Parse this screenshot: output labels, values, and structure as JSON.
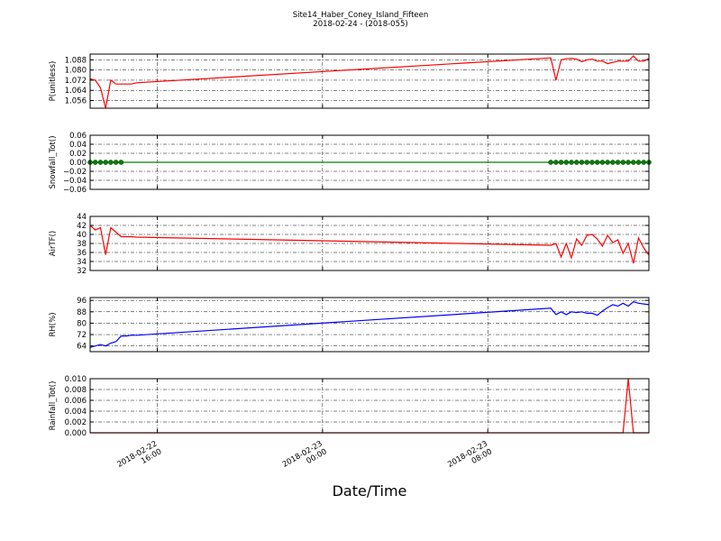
{
  "figure": {
    "title_line1": "Site14_Haber_Coney_Island_Fifteen",
    "title_line2": "2018-02-24 - (2018-055)",
    "xlabel": "Date/Time",
    "x_ticks": [
      {
        "value": 16,
        "date": "2018-02-22",
        "time": "16:00"
      },
      {
        "value": 24,
        "date": "2018-02-23",
        "time": "00:00"
      },
      {
        "value": 32,
        "date": "2018-02-23",
        "time": "08:00"
      }
    ]
  },
  "chart_data": [
    {
      "type": "line",
      "ylabel": "P(unitless)",
      "color": "#ff0000",
      "grid": true,
      "xlim": [
        12.75,
        39.8
      ],
      "ylim": [
        1.05,
        1.0925
      ],
      "yticks": [
        1.056,
        1.064,
        1.072,
        1.08,
        1.088
      ],
      "ytick_labels": [
        "1.056",
        "1.064",
        "1.072",
        "1.080",
        "1.088"
      ],
      "x": [
        12.75,
        13.0,
        13.25,
        13.5,
        13.75,
        14.0,
        14.25,
        14.5,
        14.75,
        15.0,
        35.05,
        35.3,
        35.55,
        35.8,
        36.05,
        36.3,
        36.55,
        36.8,
        37.05,
        37.3,
        37.55,
        37.8,
        38.05,
        38.3,
        38.55,
        38.8,
        39.05,
        39.3,
        39.55,
        39.8
      ],
      "y": [
        1.073,
        1.072,
        1.066,
        1.05,
        1.072,
        1.069,
        1.069,
        1.069,
        1.069,
        1.07,
        1.0895,
        1.072,
        1.088,
        1.0888,
        1.0892,
        1.0885,
        1.0865,
        1.088,
        1.0885,
        1.087,
        1.087,
        1.085,
        1.086,
        1.087,
        1.087,
        1.087,
        1.091,
        1.087,
        1.087,
        1.089
      ]
    },
    {
      "type": "line",
      "ylabel": "Snowfall_Tot()",
      "color": "#008000",
      "markers": true,
      "grid": true,
      "xlim": [
        12.75,
        39.8
      ],
      "ylim": [
        -0.06,
        0.06
      ],
      "yticks": [
        -0.06,
        -0.04,
        -0.02,
        0.0,
        0.02,
        0.04,
        0.06
      ],
      "ytick_labels": [
        "−0.06",
        "−0.04",
        "−0.02",
        "0.00",
        "0.02",
        "0.04",
        "0.06"
      ],
      "x": [
        12.75,
        13.0,
        13.25,
        13.5,
        13.75,
        14.0,
        14.25,
        35.05,
        35.3,
        35.55,
        35.8,
        36.05,
        36.3,
        36.55,
        36.8,
        37.05,
        37.3,
        37.55,
        37.8,
        38.05,
        38.3,
        38.55,
        38.8,
        39.05,
        39.3,
        39.55,
        39.8
      ],
      "y": [
        0,
        0,
        0,
        0,
        0,
        0,
        0,
        0,
        0,
        0,
        0,
        0,
        0,
        0,
        0,
        0,
        0,
        0,
        0,
        0,
        0,
        0,
        0,
        0,
        0,
        0,
        0
      ]
    },
    {
      "type": "line",
      "ylabel": "AirTF()",
      "color": "#ff0000",
      "grid": true,
      "xlim": [
        12.75,
        39.8
      ],
      "ylim": [
        32,
        44
      ],
      "yticks": [
        32,
        34,
        36,
        38,
        40,
        42,
        44
      ],
      "ytick_labels": [
        "32",
        "34",
        "36",
        "38",
        "40",
        "42",
        "44"
      ],
      "x": [
        12.75,
        13.0,
        13.25,
        13.5,
        13.75,
        14.0,
        14.25,
        14.5,
        14.75,
        15.0,
        35.05,
        35.3,
        35.55,
        35.8,
        36.05,
        36.3,
        36.55,
        36.8,
        37.05,
        37.3,
        37.55,
        37.8,
        38.05,
        38.3,
        38.55,
        38.8,
        39.05,
        39.3,
        39.55,
        39.8
      ],
      "y": [
        42,
        41,
        41.5,
        35.5,
        41.5,
        40.5,
        39.5,
        39.5,
        39.5,
        39.4,
        37.6,
        38,
        35,
        38,
        34.8,
        39,
        37.6,
        39.8,
        40,
        39,
        37.4,
        39.8,
        38.2,
        38.8,
        35.8,
        38,
        33.6,
        39.2,
        37,
        35.4
      ]
    },
    {
      "type": "line",
      "ylabel": "RH(%)",
      "color": "#0000ff",
      "grid": true,
      "xlim": [
        12.75,
        39.8
      ],
      "ylim": [
        60,
        98
      ],
      "yticks": [
        64,
        72,
        80,
        88,
        96
      ],
      "ytick_labels": [
        "64",
        "72",
        "80",
        "88",
        "96"
      ],
      "x": [
        12.75,
        13.0,
        13.25,
        13.5,
        13.75,
        14.0,
        14.25,
        14.5,
        14.75,
        15.0,
        35.05,
        35.3,
        35.55,
        35.8,
        36.05,
        36.3,
        36.55,
        36.8,
        37.05,
        37.3,
        37.55,
        37.8,
        38.05,
        38.3,
        38.55,
        38.8,
        39.05,
        39.3,
        39.55,
        39.8
      ],
      "y": [
        63,
        64,
        65,
        64,
        66,
        67,
        71,
        71,
        71.5,
        71.5,
        90.5,
        86,
        88,
        86,
        88,
        87.5,
        88,
        87,
        87,
        85.5,
        88.5,
        91,
        93,
        92,
        94,
        92,
        95,
        94,
        93.5,
        93
      ]
    },
    {
      "type": "line",
      "ylabel": "Rainfall_Tot()",
      "color": "#ff0000",
      "grid": true,
      "xlim": [
        12.75,
        39.8
      ],
      "ylim": [
        0,
        0.01
      ],
      "yticks": [
        0.0,
        0.002,
        0.004,
        0.006,
        0.008,
        0.01
      ],
      "ytick_labels": [
        "0.000",
        "0.002",
        "0.004",
        "0.006",
        "0.008",
        "0.010"
      ],
      "x": [
        12.75,
        13.0,
        13.25,
        13.5,
        13.75,
        14.0,
        14.25,
        14.5,
        14.75,
        15.0,
        35.05,
        35.3,
        35.55,
        35.8,
        36.05,
        36.3,
        36.55,
        36.8,
        37.05,
        37.3,
        37.55,
        37.8,
        38.05,
        38.3,
        38.55,
        38.8,
        39.05,
        39.3,
        39.55,
        39.8
      ],
      "y": [
        0,
        0,
        0,
        0,
        0,
        0,
        0,
        0,
        0,
        0,
        0,
        0,
        0,
        0,
        0,
        0,
        0,
        0,
        0,
        0,
        0,
        0,
        0,
        0,
        0,
        0.01,
        0,
        0,
        0,
        0
      ]
    }
  ]
}
